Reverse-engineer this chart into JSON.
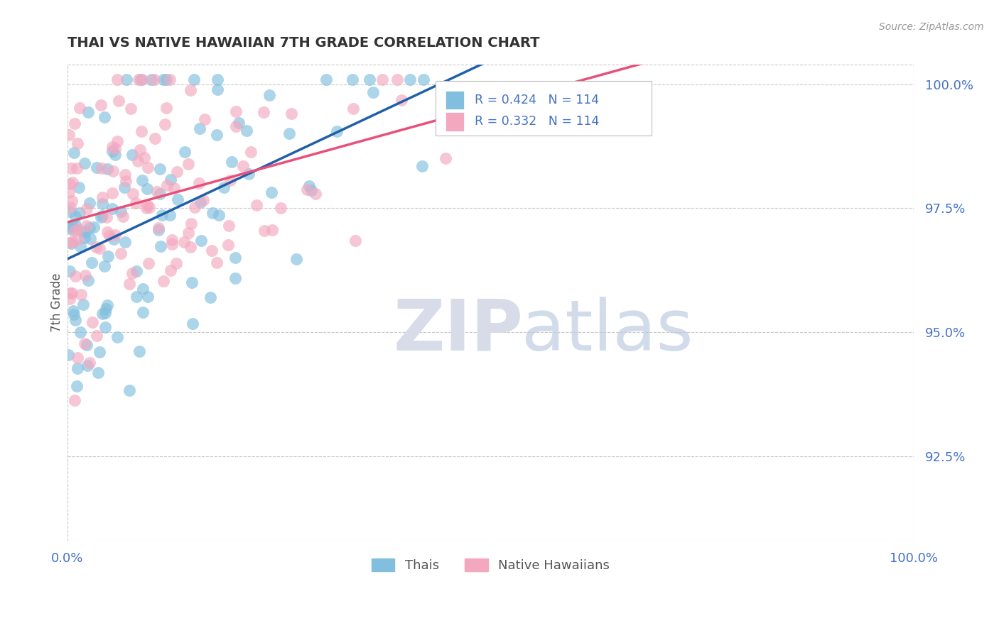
{
  "title": "THAI VS NATIVE HAWAIIAN 7TH GRADE CORRELATION CHART",
  "source_text": "Source: ZipAtlas.com",
  "ylabel": "7th Grade",
  "x_min": 0.0,
  "x_max": 1.0,
  "y_min": 0.908,
  "y_max": 1.004,
  "yticks": [
    0.925,
    0.95,
    0.975,
    1.0
  ],
  "ytick_labels": [
    "92.5%",
    "95.0%",
    "97.5%",
    "100.0%"
  ],
  "xtick_labels": [
    "0.0%",
    "100.0%"
  ],
  "xticks": [
    0.0,
    1.0
  ],
  "r_thai": 0.424,
  "n_thai": 114,
  "r_hawaiian": 0.332,
  "n_hawaiian": 114,
  "color_thai": "#82bfdf",
  "color_hawaiian": "#f4a8bf",
  "line_color_thai": "#2060a8",
  "line_color_hawaiian": "#e8507a",
  "title_color": "#333333",
  "axis_label_color": "#4472c4",
  "watermark_zip_color": "#d8dce8",
  "watermark_atlas_color": "#c0cce0",
  "background_color": "#ffffff",
  "legend_label_thai": "Thais",
  "legend_label_hawaiian": "Native Hawaiians",
  "seed": 42
}
